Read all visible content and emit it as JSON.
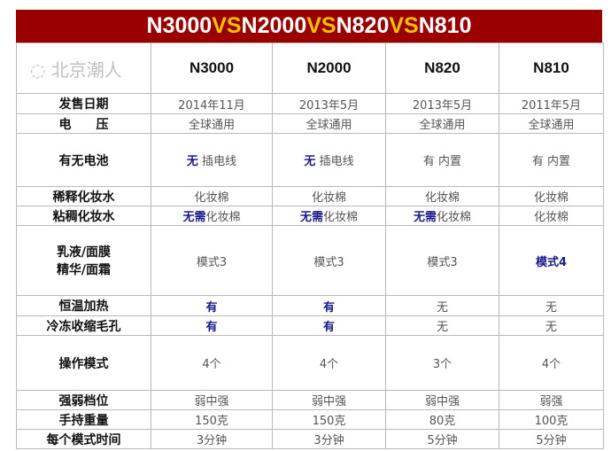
{
  "title": {
    "parts": [
      "N3000",
      "VS",
      "N2000",
      "VS",
      "N820",
      "VS",
      "N810"
    ]
  },
  "models": [
    "N3000",
    "N2000",
    "N820",
    "N810"
  ],
  "rows": [
    {
      "label": "发售日期",
      "cells": [
        {
          "t": "2014年11月"
        },
        {
          "t": "2013年5月"
        },
        {
          "t": "2013年5月"
        },
        {
          "t": "2011年5月"
        }
      ]
    },
    {
      "label": "电　　压",
      "cells": [
        {
          "t": "全球通用"
        },
        {
          "t": "全球通用"
        },
        {
          "t": "全球通用"
        },
        {
          "t": "全球通用"
        }
      ]
    },
    {
      "label": "有无电池",
      "cells": [
        {
          "h": "无",
          "t": " 插电线"
        },
        {
          "h": "无",
          "t": " 插电线"
        },
        {
          "t": "有 内置"
        },
        {
          "t": "有 内置"
        }
      ]
    },
    {
      "label": "稀释化妆水",
      "cells": [
        {
          "t": "化妆棉"
        },
        {
          "t": "化妆棉"
        },
        {
          "t": "化妆棉"
        },
        {
          "t": "化妆棉"
        }
      ]
    },
    {
      "label": "粘稠化妆水",
      "cells": [
        {
          "h": "无需",
          "t": "化妆棉"
        },
        {
          "h": "无需",
          "t": "化妆棉"
        },
        {
          "h": "无需",
          "t": "化妆棉"
        },
        {
          "t": "化妆棉"
        }
      ]
    },
    {
      "label": "乳液/面膜\n精华/面霜",
      "cells": [
        {
          "t": "模式3"
        },
        {
          "t": "模式3"
        },
        {
          "t": "模式3"
        },
        {
          "h": "模式4"
        }
      ]
    },
    {
      "label": "恒温加热",
      "cells": [
        {
          "h": "有"
        },
        {
          "h": "有"
        },
        {
          "t": "无"
        },
        {
          "t": "无"
        }
      ]
    },
    {
      "label": "冷冻收缩毛孔",
      "cells": [
        {
          "h": "有"
        },
        {
          "h": "有"
        },
        {
          "t": "无"
        },
        {
          "t": "无"
        }
      ]
    },
    {
      "label": "操作模式",
      "cells": [
        {
          "t": "4个"
        },
        {
          "t": "4个"
        },
        {
          "t": "3个"
        },
        {
          "t": "4个"
        }
      ]
    },
    {
      "label": "强弱档位",
      "cells": [
        {
          "t": "弱中强"
        },
        {
          "t": "弱中强"
        },
        {
          "t": "弱中强"
        },
        {
          "t": "弱强"
        }
      ]
    },
    {
      "label": "手持重量",
      "cells": [
        {
          "t": "150克"
        },
        {
          "t": "150克"
        },
        {
          "t": "80克"
        },
        {
          "t": "100克"
        }
      ]
    },
    {
      "label": "每个模式时间",
      "cells": [
        {
          "t": "3分钟"
        },
        {
          "t": "3分钟"
        },
        {
          "t": "5分钟"
        },
        {
          "t": "5分钟"
        }
      ]
    }
  ],
  "watermark": "北京潮人",
  "colors": {
    "title_bg": "#9b0000",
    "vs": "#f2c200",
    "highlight": "#1a1a8c"
  }
}
